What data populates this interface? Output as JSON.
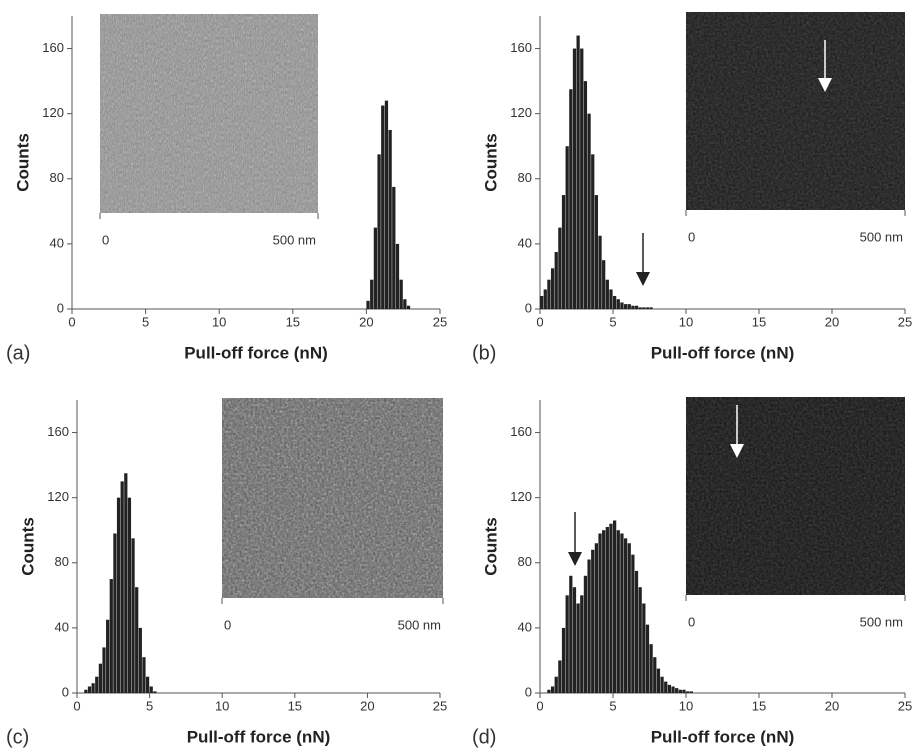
{
  "chart_data": [
    {
      "type": "histogram",
      "panel": "(a)",
      "xlabel": "Pull-off force (nN)",
      "ylabel": "Counts",
      "color": "#222222",
      "xlim": [
        0,
        25
      ],
      "xticks": [
        0,
        5,
        10,
        15,
        20,
        25
      ],
      "ylim": [
        0,
        180
      ],
      "yticks": [
        0,
        40,
        80,
        120,
        160
      ],
      "bins": [
        20,
        20.25,
        20.5,
        20.75,
        21,
        21.25,
        21.5,
        21.75,
        22,
        22.25,
        22.5,
        22.75,
        23
      ],
      "values": [
        5,
        18,
        50,
        95,
        125,
        128,
        110,
        75,
        40,
        18,
        6,
        2
      ],
      "inset": {
        "xlim": [
          0,
          500
        ],
        "xticks": [
          0,
          {
            "value": 500,
            "label": "500 nm"
          }
        ]
      }
    },
    {
      "type": "histogram",
      "panel": "(b)",
      "xlabel": "Pull-off force (nN)",
      "ylabel": "Counts",
      "color": "#222222",
      "xlim": [
        0,
        25
      ],
      "xticks": [
        0,
        5,
        10,
        15,
        20,
        25
      ],
      "ylim": [
        0,
        180
      ],
      "yticks": [
        0,
        40,
        80,
        120,
        160
      ],
      "bins": [
        0,
        0.25,
        0.5,
        0.75,
        1,
        1.25,
        1.5,
        1.75,
        2,
        2.25,
        2.5,
        2.75,
        3,
        3.25,
        3.5,
        3.75,
        4,
        4.25,
        4.5,
        4.75,
        5,
        5.25,
        5.5,
        5.75,
        6,
        6.25,
        6.5,
        6.75,
        7,
        7.25,
        7.5,
        7.75,
        8
      ],
      "values": [
        8,
        12,
        18,
        25,
        35,
        50,
        70,
        100,
        135,
        160,
        168,
        160,
        140,
        120,
        95,
        70,
        45,
        30,
        18,
        12,
        8,
        6,
        4,
        3,
        3,
        2,
        2,
        1,
        1,
        1,
        1,
        0
      ],
      "inset": {
        "xlim": [
          0,
          500
        ],
        "xticks": [
          0,
          {
            "value": 500,
            "label": "500 nm"
          }
        ]
      }
    },
    {
      "type": "histogram",
      "panel": "(c)",
      "xlabel": "Pull-off force (nN)",
      "ylabel": "Counts",
      "color": "#222222",
      "xlim": [
        0,
        25
      ],
      "xticks": [
        0,
        5,
        10,
        15,
        20,
        25
      ],
      "ylim": [
        0,
        180
      ],
      "yticks": [
        0,
        40,
        80,
        120,
        160
      ],
      "bins": [
        0.5,
        0.75,
        1,
        1.25,
        1.5,
        1.75,
        2,
        2.25,
        2.5,
        2.75,
        3,
        3.25,
        3.5,
        3.75,
        4,
        4.25,
        4.5,
        4.75,
        5,
        5.25,
        5.5
      ],
      "values": [
        2,
        4,
        6,
        10,
        18,
        28,
        45,
        70,
        98,
        120,
        130,
        135,
        120,
        95,
        65,
        40,
        22,
        10,
        4,
        1
      ],
      "inset": {
        "xlim": [
          0,
          500
        ],
        "xticks": [
          0,
          {
            "value": 500,
            "label": "500 nm"
          }
        ]
      }
    },
    {
      "type": "histogram",
      "panel": "(d)",
      "xlabel": "Pull-off force (nN)",
      "ylabel": "Counts",
      "color": "#222222",
      "xlim": [
        0,
        25
      ],
      "xticks": [
        0,
        5,
        10,
        15,
        20,
        25
      ],
      "ylim": [
        0,
        180
      ],
      "yticks": [
        0,
        40,
        80,
        120,
        160
      ],
      "bins": [
        0.5,
        0.75,
        1,
        1.25,
        1.5,
        1.75,
        2,
        2.25,
        2.5,
        2.75,
        3,
        3.25,
        3.5,
        3.75,
        4,
        4.25,
        4.5,
        4.75,
        5,
        5.25,
        5.5,
        5.75,
        6,
        6.25,
        6.5,
        6.75,
        7,
        7.25,
        7.5,
        7.75,
        8,
        8.25,
        8.5,
        8.75,
        9,
        9.25,
        9.5,
        9.75,
        10,
        10.25,
        10.5
      ],
      "values": [
        2,
        4,
        10,
        20,
        40,
        60,
        72,
        65,
        55,
        60,
        72,
        82,
        88,
        92,
        98,
        100,
        102,
        104,
        106,
        100,
        98,
        95,
        92,
        85,
        75,
        65,
        55,
        42,
        30,
        22,
        15,
        10,
        7,
        5,
        4,
        3,
        2,
        2,
        1,
        1
      ],
      "inset": {
        "xlim": [
          0,
          500
        ],
        "xticks": [
          0,
          {
            "value": 500,
            "label": "500 nm"
          }
        ]
      }
    }
  ]
}
